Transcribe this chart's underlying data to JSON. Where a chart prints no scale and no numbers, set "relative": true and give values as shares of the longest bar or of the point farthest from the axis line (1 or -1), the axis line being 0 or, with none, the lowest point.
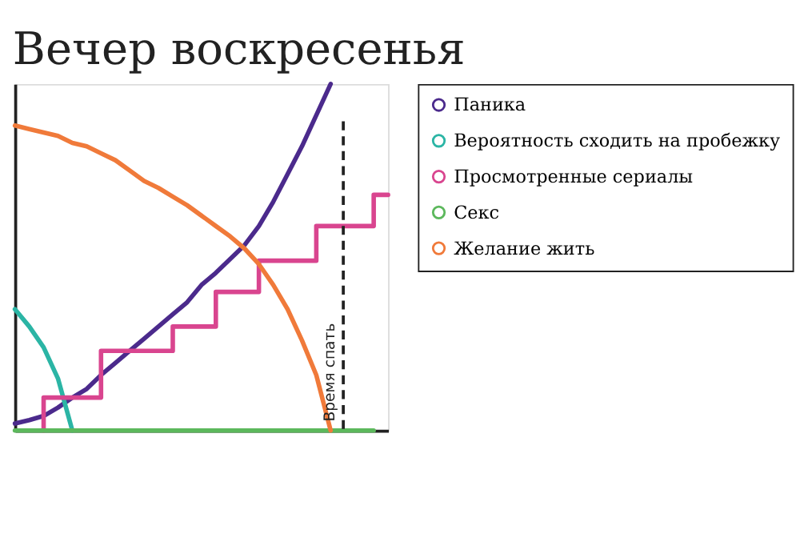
{
  "chart_data": {
    "type": "line",
    "title": "Вечер воскресенья",
    "relative": true,
    "tick_labels": false,
    "grid": false,
    "legend": "right",
    "marker": "none",
    "line_style": "solid",
    "categories": [
      null,
      null,
      null,
      null,
      null,
      null,
      null,
      null,
      null,
      null,
      null,
      null,
      null,
      null,
      null,
      null,
      null,
      null,
      null,
      null,
      null,
      null,
      null,
      null,
      null,
      null,
      null
    ],
    "series": [
      {
        "name": "Паника",
        "color": "#4b2a8c",
        "values": [
          0.02,
          0.03,
          0.042,
          0.066,
          0.095,
          0.12,
          0.16,
          0.195,
          0.23,
          0.265,
          0.3,
          0.335,
          0.37,
          0.42,
          0.455,
          0.495,
          0.535,
          0.59,
          0.66,
          0.74,
          0.82,
          0.91,
          1.0,
          null,
          null,
          null,
          null
        ]
      },
      {
        "name": "Вероятность сходить на пробежку",
        "color": "#2bb5a5",
        "values": [
          0.35,
          0.3,
          0.24,
          0.15,
          0,
          null,
          null,
          null,
          null,
          null,
          null,
          null,
          null,
          null,
          null,
          null,
          null,
          null,
          null,
          null,
          null,
          null,
          null,
          null,
          null,
          null,
          null
        ]
      },
      {
        "name": "Просмотренные сериалы",
        "type": "step",
        "color": "#d9458f",
        "values": [
          null,
          null,
          0,
          0.095,
          0.095,
          0.095,
          0.095,
          0.23,
          0.23,
          0.23,
          0.23,
          0.23,
          0.3,
          0.3,
          0.3,
          0.4,
          0.4,
          0.4,
          0.49,
          0.49,
          0.49,
          0.49,
          0.59,
          0.59,
          0.59,
          0.59,
          0.68
        ]
      },
      {
        "name": "Секс",
        "color": "#5cb85c",
        "values": [
          0,
          0,
          0,
          0,
          0,
          0,
          0,
          0,
          0,
          0,
          0,
          0,
          0,
          0,
          0,
          0,
          0,
          0,
          0,
          0,
          0,
          0,
          0,
          0,
          0,
          0,
          null
        ]
      },
      {
        "name": "Желание жить",
        "color": "#f07a3a",
        "values": [
          0.88,
          0.87,
          0.86,
          0.85,
          0.83,
          0.82,
          0.8,
          0.78,
          0.75,
          0.72,
          0.7,
          0.675,
          0.65,
          0.62,
          0.59,
          0.56,
          0.525,
          0.48,
          0.42,
          0.35,
          0.26,
          0.16,
          0,
          null,
          null,
          null,
          null
        ]
      }
    ],
    "annotations": [
      "Время спать"
    ]
  }
}
